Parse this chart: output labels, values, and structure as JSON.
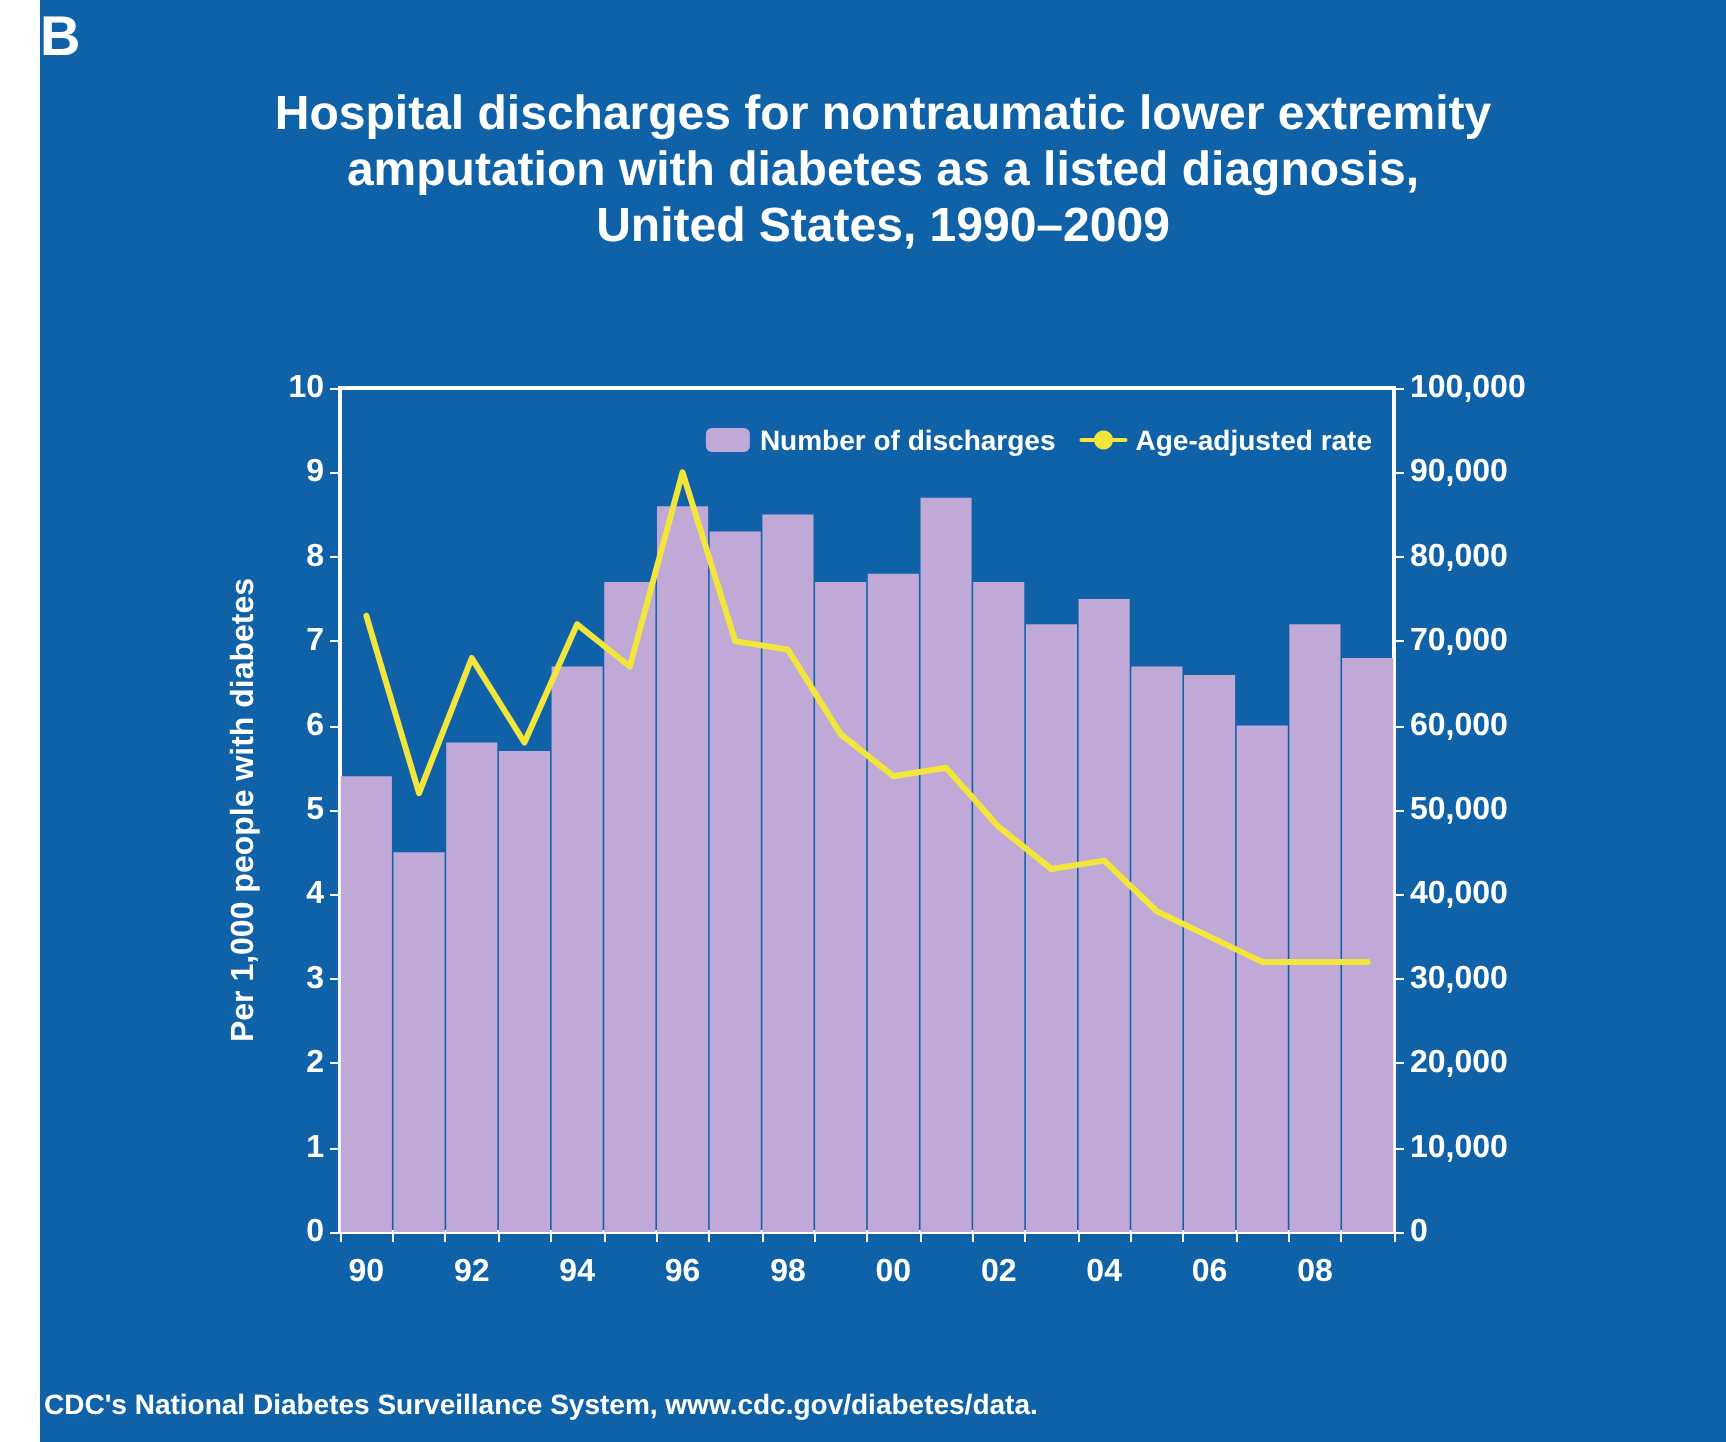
{
  "chart_data": {
    "type": "bar",
    "title": "Hospital discharges for nontraumatic lower extremity\namputation with diabetes as a listed diagnosis,\nUnited States, 1990–2009",
    "ylabel": "Per 1,000 people with diabetes",
    "annotations": [
      "B",
      "CDC's National Diabetes Surveillance System, www.cdc.gov/diabetes/data."
    ],
    "categories": [
      "90",
      null,
      "92",
      null,
      "94",
      null,
      "96",
      null,
      "98",
      null,
      "00",
      null,
      "02",
      null,
      "04",
      null,
      "06",
      null,
      "08",
      null
    ],
    "series": [
      {
        "name": "Number of discharges",
        "axis": "y2",
        "color": "#c0a9d6",
        "values": [
          54000,
          45000,
          58000,
          57000,
          67000,
          77000,
          86000,
          83000,
          85000,
          77000,
          78000,
          87000,
          77000,
          72000,
          75000,
          67000,
          66000,
          60000,
          72000,
          68000
        ]
      },
      {
        "name": "Age-adjusted rate",
        "type": "line",
        "color": "#f2e63c",
        "values": [
          7.3,
          5.2,
          6.8,
          5.8,
          7.2,
          6.7,
          9.0,
          7.0,
          6.9,
          5.9,
          5.4,
          5.5,
          4.8,
          4.3,
          4.4,
          3.8,
          3.5,
          3.2,
          3.2,
          3.2
        ]
      }
    ],
    "ylim": [
      0,
      10
    ],
    "yticks": [
      0,
      1,
      2,
      3,
      4,
      5,
      6,
      7,
      8,
      9,
      10
    ],
    "y2lim": [
      0,
      100000
    ],
    "y2ticks": [
      0,
      {
        "value": 10000,
        "label": "10,000"
      },
      {
        "value": 20000,
        "label": "20,000"
      },
      {
        "value": 30000,
        "label": "30,000"
      },
      {
        "value": 40000,
        "label": "40,000"
      },
      {
        "value": 50000,
        "label": "50,000"
      },
      {
        "value": 60000,
        "label": "60,000"
      },
      {
        "value": 70000,
        "label": "70,000"
      },
      {
        "value": 80000,
        "label": "80,000"
      },
      {
        "value": 90000,
        "label": "90,000"
      },
      {
        "value": 100000,
        "label": "100,000"
      }
    ],
    "grid": false,
    "legend": "top right",
    "marker": "none",
    "line_style": "solid"
  }
}
